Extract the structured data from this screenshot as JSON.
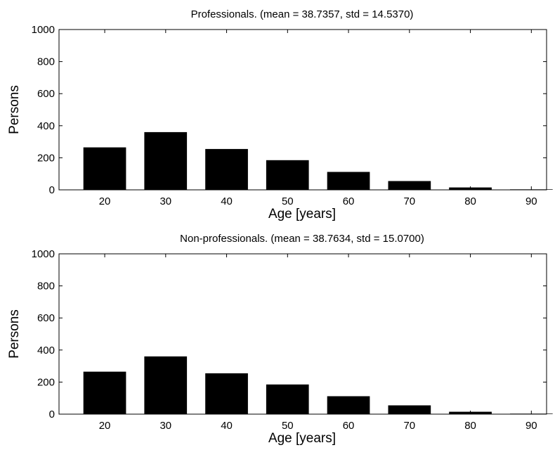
{
  "chart_data": [
    {
      "type": "bar",
      "title": "Professionals. (mean = 38.7357, std = 14.5370)",
      "xlabel": "Age [years]",
      "ylabel": "Persons",
      "categories": [
        20,
        30,
        40,
        50,
        60,
        70,
        80,
        90
      ],
      "values": [
        265,
        360,
        255,
        185,
        112,
        55,
        15,
        3
      ],
      "xlim": [
        12.5,
        92.5
      ],
      "ylim": [
        0,
        1000
      ],
      "xticks": [
        "20",
        "30",
        "40",
        "50",
        "60",
        "70",
        "80",
        "90"
      ],
      "yticks": [
        "0",
        "200",
        "400",
        "600",
        "800",
        "1000"
      ],
      "bar_color": "#000000",
      "grid": false
    },
    {
      "type": "bar",
      "title": "Non-professionals. (mean = 38.7634, std = 15.0700)",
      "xlabel": "Age [years]",
      "ylabel": "Persons",
      "categories": [
        20,
        30,
        40,
        50,
        60,
        70,
        80,
        90
      ],
      "values": [
        265,
        360,
        255,
        185,
        112,
        55,
        15,
        3
      ],
      "xlim": [
        12.5,
        92.5
      ],
      "ylim": [
        0,
        1000
      ],
      "xticks": [
        "20",
        "30",
        "40",
        "50",
        "60",
        "70",
        "80",
        "90"
      ],
      "yticks": [
        "0",
        "200",
        "400",
        "600",
        "800",
        "1000"
      ],
      "bar_color": "#000000",
      "grid": false
    }
  ]
}
